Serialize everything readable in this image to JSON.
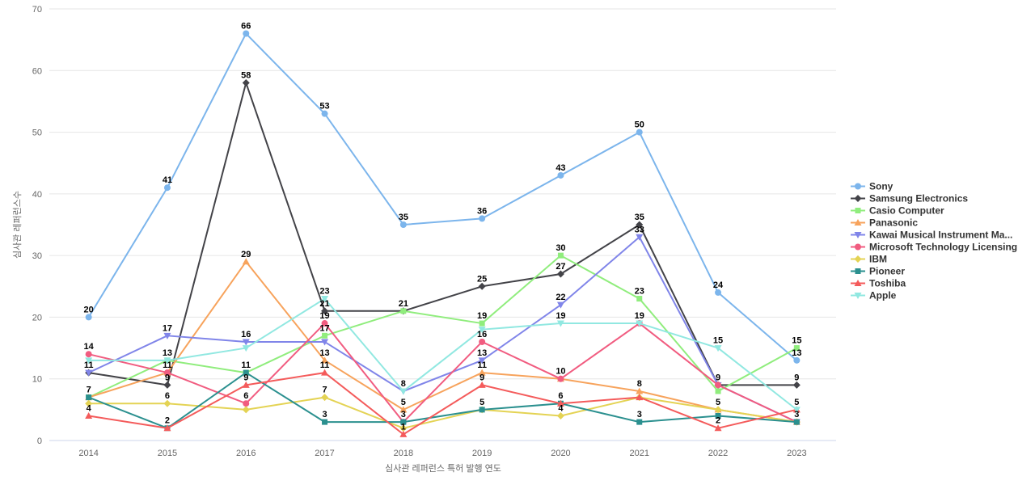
{
  "chart": {
    "background": "#ffffff",
    "grid_color": "#e6e6e6",
    "axis_line_color": "#ccd6eb",
    "tick_label_color": "#666666",
    "axis_title_color": "#666666",
    "legend_text_color": "#333333",
    "data_label_color": "#000000"
  },
  "chart_data": {
    "type": "line",
    "title": "",
    "xlabel": "심사관 레퍼런스 특허 발행 연도",
    "ylabel": "심사관 레퍼런스수",
    "categories": [
      "2014",
      "2015",
      "2016",
      "2017",
      "2018",
      "2019",
      "2020",
      "2021",
      "2022",
      "2023"
    ],
    "ylim": [
      0,
      70
    ],
    "yticks": [
      0,
      10,
      20,
      30,
      40,
      50,
      60,
      70
    ],
    "grid": true,
    "legend_position": "right",
    "series": [
      {
        "name": "Sony",
        "color": "#7cb5ec",
        "marker": "circle",
        "values": [
          20,
          41,
          66,
          53,
          35,
          36,
          43,
          50,
          24,
          13
        ]
      },
      {
        "name": "Samsung Electronics",
        "color": "#434348",
        "marker": "diamond",
        "values": [
          11,
          9,
          58,
          21,
          21,
          25,
          27,
          35,
          9,
          9
        ]
      },
      {
        "name": "Casio Computer",
        "color": "#90ed7d",
        "marker": "square",
        "values": [
          7,
          13,
          11,
          17,
          21,
          19,
          30,
          23,
          8,
          15
        ]
      },
      {
        "name": "Panasonic",
        "color": "#f7a35c",
        "marker": "triangle",
        "values": [
          7,
          11,
          29,
          13,
          5,
          11,
          10,
          8,
          5,
          3
        ]
      },
      {
        "name": "Kawai Musical Instrument Ma...",
        "color": "#8085e9",
        "marker": "triangle-down",
        "values": [
          11,
          17,
          16,
          16,
          8,
          13,
          22,
          33,
          9,
          3
        ]
      },
      {
        "name": "Microsoft Technology Licensing",
        "color": "#f15c80",
        "marker": "circle",
        "values": [
          14,
          11,
          6,
          19,
          3,
          16,
          10,
          19,
          9,
          3
        ]
      },
      {
        "name": "IBM",
        "color": "#e4d354",
        "marker": "diamond",
        "values": [
          6,
          6,
          5,
          7,
          2,
          5,
          4,
          7,
          5,
          3
        ]
      },
      {
        "name": "Pioneer",
        "color": "#2b908f",
        "marker": "square",
        "values": [
          7,
          2,
          11,
          3,
          3,
          5,
          6,
          3,
          4,
          3
        ]
      },
      {
        "name": "Toshiba",
        "color": "#f45b5b",
        "marker": "triangle",
        "values": [
          4,
          2,
          9,
          11,
          1,
          9,
          6,
          7,
          2,
          5
        ]
      },
      {
        "name": "Apple",
        "color": "#91e8e1",
        "marker": "triangle-down",
        "values": [
          13,
          13,
          15,
          23,
          8,
          18,
          19,
          19,
          15,
          5
        ]
      }
    ]
  }
}
